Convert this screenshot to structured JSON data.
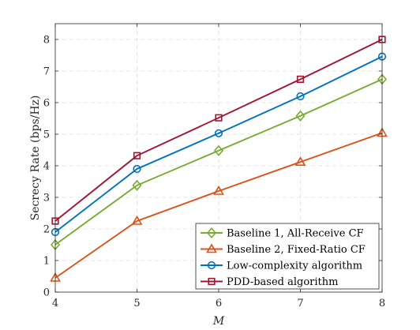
{
  "chart_data": {
    "type": "line",
    "title": "",
    "xlabel": "M",
    "ylabel": "Secrecy Rate (bps/Hz)",
    "x": [
      4,
      5,
      6,
      7,
      8
    ],
    "xlim": [
      4,
      8
    ],
    "ylim": [
      0,
      8.5
    ],
    "xticks": [
      "4",
      "5",
      "6",
      "7",
      "8"
    ],
    "yticks": [
      "0",
      "1",
      "2",
      "3",
      "4",
      "5",
      "6",
      "7",
      "8"
    ],
    "grid": true,
    "legend_position": "bottom-right",
    "series": [
      {
        "name": "Baseline 1, All-Receive CF",
        "values": [
          1.5,
          3.38,
          4.48,
          5.58,
          6.74
        ],
        "color": "#77AC30",
        "marker": "diamond"
      },
      {
        "name": "Baseline 2, Fixed-Ratio CF",
        "values": [
          0.45,
          2.25,
          3.2,
          4.12,
          5.04
        ],
        "color": "#D95319",
        "marker": "triangle"
      },
      {
        "name": "Low-complexity algorithm",
        "values": [
          1.9,
          3.9,
          5.03,
          6.2,
          7.46
        ],
        "color": "#0072BD",
        "marker": "circle"
      },
      {
        "name": "PDD-based algorithm",
        "values": [
          2.25,
          4.32,
          5.52,
          6.74,
          8.0
        ],
        "color": "#A2142F",
        "marker": "square"
      }
    ]
  }
}
